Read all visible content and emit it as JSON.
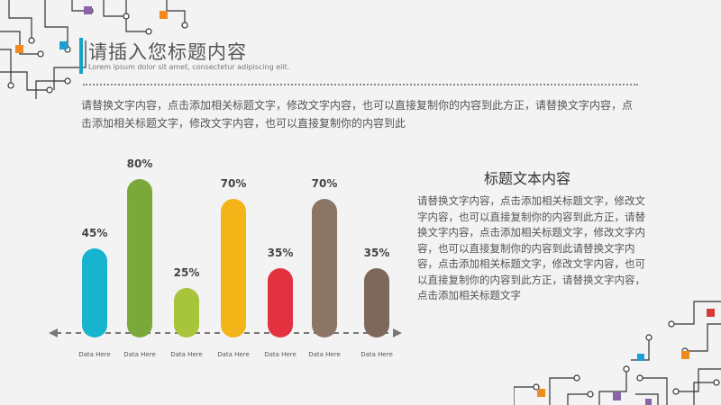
{
  "header": {
    "title": "请插入您标题内容",
    "subtitle": "Lorem ipsum dolor sit amet, consectetur adipiscing elit."
  },
  "intro_text": "请替换文字内容，点击添加相关标题文字，修改文字内容，也可以直接复制你的内容到此方正，请替换文字内容，点击添加相关标题文字，修改文字内容，也可以直接复制你的内容到此",
  "side_panel": {
    "title": "标题文本内容",
    "body": "请替换文字内容，点击添加相关标题文字，修改文字内容，也可以直接复制你的内容到此方正，请替换文字内容，点击添加相关标题文字，修改文字内容，也可以直接复制你的内容到此请替换文字内容，点击添加相关标题文字，修改文字内容，也可以直接复制你的内容到此方正，请替换文字内容，点击添加相关标题文字"
  },
  "colors": {
    "accent": "#18a3c6",
    "circuit": "#333333",
    "square_orange": "#f08a1e",
    "square_purple": "#8a63a8",
    "square_red": "#d63b3b",
    "square_blue": "#1a9fd6"
  },
  "chart_data": {
    "type": "bar",
    "categories": [
      "Data Here",
      "Data Here",
      "Data Here",
      "Data Here",
      "Data Here",
      "Data Here",
      "Data Here"
    ],
    "values": [
      45,
      80,
      25,
      70,
      35,
      70,
      35
    ],
    "value_labels": [
      "45%",
      "80%",
      "25%",
      "70%",
      "35%",
      "70%",
      "35%"
    ],
    "colors": [
      "#17b3cf",
      "#7aa83a",
      "#a8c43a",
      "#f2b416",
      "#e33140",
      "#8b7565",
      "#7e685c"
    ],
    "ylim": [
      0,
      100
    ],
    "grid": false,
    "legend": "none"
  }
}
